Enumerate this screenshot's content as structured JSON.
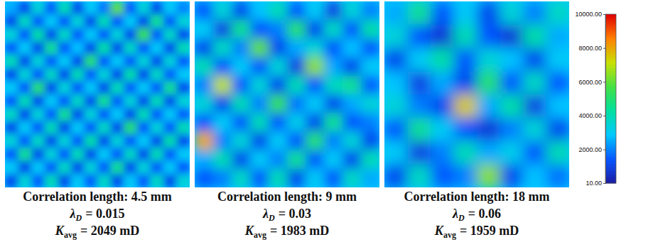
{
  "chart_data": {
    "type": "heatmap",
    "panels": [
      {
        "title": "Correlation length: 4.5 mm",
        "lambda": {
          "symbol": "λ",
          "sub": "D",
          "text": "= 0.015"
        },
        "kavg": {
          "symbol": "K",
          "sub": "avg",
          "text": "= 2049 mD"
        },
        "cells": [
          [
            2500,
            1200,
            3500,
            1500,
            4000,
            1200,
            3000,
            1800,
            6000,
            1500,
            3500,
            1200,
            3000,
            2000
          ],
          [
            1200,
            3800,
            1500,
            3000,
            1500,
            3500,
            1200,
            4000,
            1500,
            3000,
            1200,
            4500,
            1500,
            3500
          ],
          [
            3500,
            1500,
            4200,
            1200,
            3800,
            1500,
            3000,
            1500,
            3500,
            1200,
            5500,
            1500,
            3800,
            1200
          ],
          [
            1500,
            3000,
            1200,
            4500,
            1500,
            2800,
            1200,
            4200,
            1200,
            3800,
            1500,
            3000,
            1200,
            4000
          ],
          [
            4000,
            1200,
            3500,
            1500,
            3000,
            1200,
            5000,
            1500,
            3000,
            1500,
            3500,
            1200,
            3500,
            1500
          ],
          [
            1200,
            3500,
            1500,
            3800,
            1200,
            4000,
            1500,
            3500,
            1200,
            4200,
            1200,
            3800,
            1500,
            3000
          ],
          [
            3000,
            1500,
            5000,
            1200,
            3500,
            1500,
            3000,
            1200,
            4000,
            1500,
            3000,
            1500,
            4500,
            1200
          ],
          [
            1500,
            4000,
            1200,
            3000,
            1500,
            3800,
            1200,
            4500,
            1500,
            3500,
            1200,
            4000,
            1200,
            3500
          ],
          [
            3800,
            1200,
            3500,
            1500,
            4500,
            1200,
            3500,
            1500,
            3000,
            1200,
            4000,
            1500,
            3000,
            1500
          ],
          [
            1200,
            3000,
            1500,
            4000,
            1200,
            3000,
            1500,
            3800,
            1200,
            5000,
            1500,
            3500,
            1500,
            4000
          ],
          [
            3500,
            1500,
            3800,
            1200,
            3500,
            1500,
            4200,
            1200,
            3500,
            1500,
            3000,
            1200,
            4200,
            1200
          ],
          [
            1500,
            4500,
            1200,
            3500,
            1500,
            4000,
            1200,
            3000,
            1500,
            3800,
            1200,
            4000,
            1500,
            3000
          ],
          [
            3000,
            1200,
            3000,
            1500,
            3800,
            1200,
            3500,
            1500,
            4500,
            1200,
            3500,
            1500,
            3000,
            1500
          ],
          [
            1200,
            3500,
            1500,
            4000,
            1200,
            3000,
            1500,
            3800,
            1200,
            3000,
            1500,
            3800,
            1200,
            3500
          ]
        ]
      },
      {
        "title": "Correlation length: 9 mm",
        "lambda": {
          "symbol": "λ",
          "sub": "D",
          "text": "= 0.03"
        },
        "kavg": {
          "symbol": "K",
          "sub": "avg",
          "text": "= 1983 mD"
        },
        "cells": [
          [
            1500,
            3500,
            1200,
            2800,
            4000,
            1500,
            3000,
            1000,
            3500,
            2000
          ],
          [
            3000,
            1000,
            4500,
            1500,
            2000,
            5000,
            1200,
            3800,
            1500,
            4200
          ],
          [
            1200,
            3800,
            2000,
            6000,
            1200,
            2500,
            3500,
            1500,
            2800,
            1500
          ],
          [
            4000,
            1500,
            3000,
            1500,
            3500,
            1000,
            6500,
            2500,
            1200,
            3000
          ],
          [
            2000,
            7000,
            1500,
            3500,
            1200,
            4000,
            1500,
            3800,
            4500,
            1500
          ],
          [
            3500,
            1200,
            4000,
            2000,
            5500,
            1800,
            3000,
            1200,
            2500,
            3500
          ],
          [
            1500,
            3000,
            1500,
            4000,
            1500,
            3200,
            1200,
            4500,
            1500,
            2000
          ],
          [
            8000,
            2000,
            3500,
            1200,
            3000,
            1500,
            5000,
            2000,
            3500,
            1200
          ],
          [
            2500,
            4000,
            1200,
            3000,
            2000,
            4500,
            1500,
            3000,
            1200,
            4000
          ],
          [
            1500,
            2000,
            3800,
            1500,
            4000,
            1200,
            3000,
            1500,
            3800,
            2500
          ]
        ]
      },
      {
        "title": "Correlation length: 18 mm",
        "lambda": {
          "symbol": "λ",
          "sub": "D",
          "text": "= 0.06"
        },
        "kavg": {
          "symbol": "K",
          "sub": "avg",
          "text": "= 1959 mD"
        },
        "cells": [
          [
            2500,
            4500,
            1500,
            3000,
            1200,
            3500,
            2000,
            3800
          ],
          [
            3500,
            1500,
            800,
            4000,
            1500,
            800,
            4200,
            2500
          ],
          [
            1200,
            3000,
            4200,
            1500,
            3500,
            2800,
            1200,
            3000
          ],
          [
            2800,
            1000,
            2500,
            1200,
            5000,
            1500,
            3800,
            1500
          ],
          [
            3500,
            2000,
            1200,
            7500,
            2500,
            4200,
            1000,
            2800
          ],
          [
            1500,
            4500,
            3000,
            1500,
            800,
            2000,
            3500,
            1200
          ],
          [
            3000,
            1000,
            2000,
            4000,
            2500,
            3200,
            1500,
            4000
          ],
          [
            1200,
            3800,
            1500,
            2000,
            6500,
            1200,
            2800,
            1800
          ]
        ]
      }
    ],
    "colorbar": {
      "range": [
        10,
        10000
      ],
      "ticks": [
        {
          "value": 10,
          "label": "10.00"
        },
        {
          "value": 2000,
          "label": "2000.00"
        },
        {
          "value": 4000,
          "label": "4000.00"
        },
        {
          "value": 6000,
          "label": "6000.00"
        },
        {
          "value": 8000,
          "label": "8000.00"
        },
        {
          "value": 10000,
          "label": "10000.00"
        }
      ],
      "colors": [
        "#1a1aa0",
        "#0050ff",
        "#00c8ff",
        "#00e0a0",
        "#40e040",
        "#c8e000",
        "#ff8000",
        "#e00000"
      ]
    }
  }
}
